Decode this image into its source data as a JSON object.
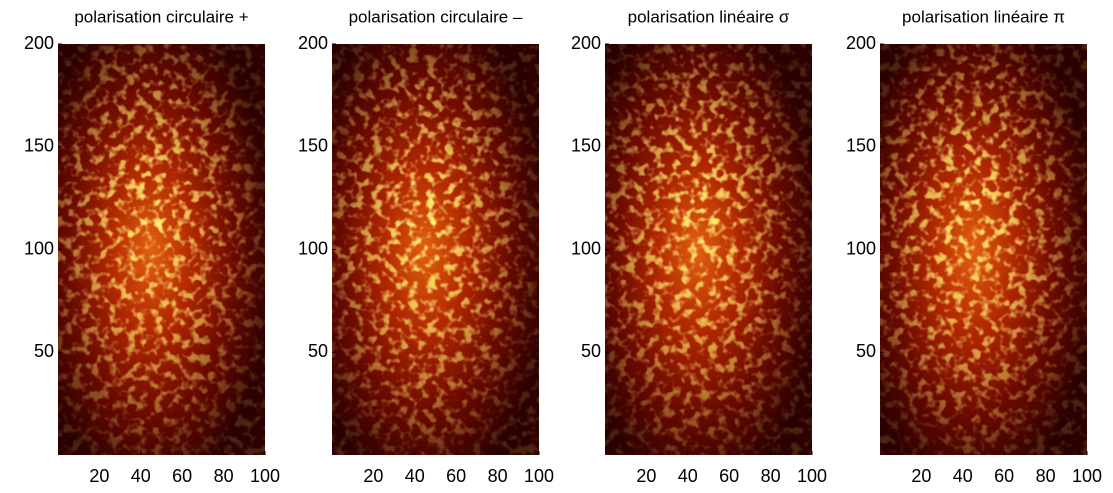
{
  "chart_data": [
    {
      "type": "image",
      "title": "polarisation circulaire +",
      "colormap": "hot",
      "xlim": [
        0,
        100
      ],
      "ylim": [
        0,
        200
      ],
      "xticks": [
        20,
        40,
        60,
        80,
        100
      ],
      "yticks": [
        50,
        100,
        150,
        200
      ]
    },
    {
      "type": "image",
      "title": "polarisation circulaire –",
      "colormap": "hot",
      "xlim": [
        0,
        100
      ],
      "ylim": [
        0,
        200
      ],
      "xticks": [
        20,
        40,
        60,
        80,
        100
      ],
      "yticks": [
        50,
        100,
        150,
        200
      ]
    },
    {
      "type": "image",
      "title": "polarisation linéaire σ",
      "colormap": "hot",
      "xlim": [
        0,
        100
      ],
      "ylim": [
        0,
        200
      ],
      "xticks": [
        20,
        40,
        60,
        80,
        100
      ],
      "yticks": [
        50,
        100,
        150,
        200
      ]
    },
    {
      "type": "image",
      "title": "polarisation linéaire π",
      "colormap": "hot",
      "xlim": [
        0,
        100
      ],
      "ylim": [
        0,
        200
      ],
      "xticks": [
        20,
        40,
        60,
        80,
        100
      ],
      "yticks": [
        50,
        100,
        150,
        200
      ]
    }
  ]
}
